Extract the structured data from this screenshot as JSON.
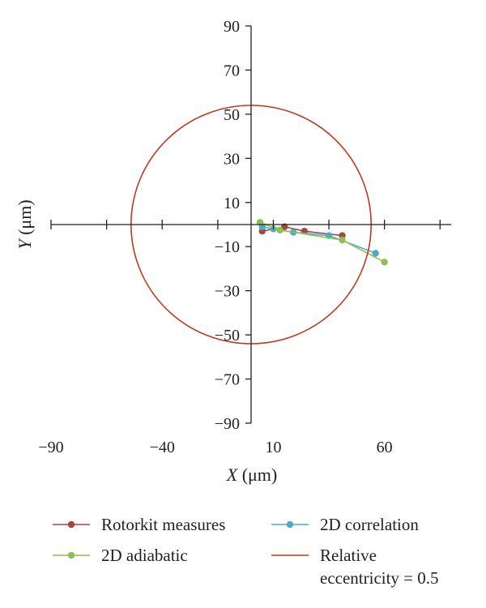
{
  "chart_data": {
    "type": "scatter",
    "xlabel": {
      "var": "X",
      "unit": " (μm)"
    },
    "ylabel": {
      "var": "Y",
      "unit": " (μm)"
    },
    "xlim": [
      -90,
      90
    ],
    "ylim": [
      -90,
      90
    ],
    "x_ticks": [
      -90,
      -40,
      10,
      60
    ],
    "x_tick_labels": [
      "−90",
      "−40",
      "10",
      "60"
    ],
    "y_ticks": [
      90,
      70,
      50,
      30,
      10,
      -10,
      -30,
      -50,
      -70,
      -90
    ],
    "y_tick_labels": [
      "90",
      "70",
      "50",
      "30",
      "10",
      "−10",
      "−30",
      "−50",
      "−70",
      "−90"
    ],
    "grid": false,
    "legend_position": "bottom",
    "series": [
      {
        "name": "Rotorkit measures",
        "color": "#a94442",
        "x": [
          5,
          15,
          24,
          41
        ],
        "y": [
          -3,
          -1,
          -3,
          -5
        ]
      },
      {
        "name": "2D correlation",
        "color": "#4bacc6",
        "x": [
          5,
          10,
          19,
          35,
          56
        ],
        "y": [
          -1,
          -2,
          -3.5,
          -5,
          -13
        ]
      },
      {
        "name": "2D adiabatic",
        "color": "#8cc152",
        "x": [
          4,
          13,
          41,
          60
        ],
        "y": [
          1,
          -2.5,
          -7,
          -17
        ]
      },
      {
        "name": "Relative eccentricity = 0.5",
        "name_lines": [
          "Relative",
          "eccentricity = 0.5"
        ],
        "color": "#c0391b",
        "type": "circle",
        "center": [
          0,
          0
        ],
        "radius": 54
      }
    ]
  }
}
